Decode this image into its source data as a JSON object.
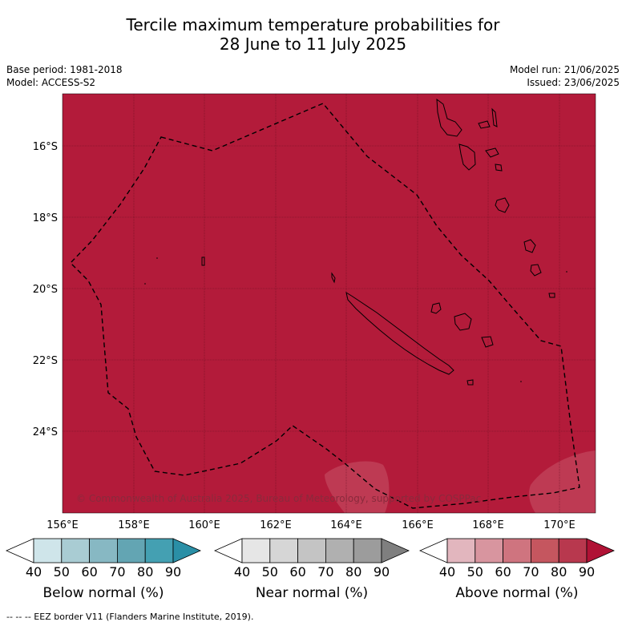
{
  "title_line1": "Tercile maximum temperature probabilities for",
  "title_line2": "28 June to 11 July 2025",
  "base_period": "Base period: 1981-2018",
  "model": "Model: ACCESS-S2",
  "model_run": "Model run: 21/06/2025",
  "issued": "Issued: 23/06/2025",
  "lat_labels": [
    "16°S",
    "18°S",
    "20°S",
    "22°S",
    "24°S"
  ],
  "lon_labels": [
    "156°E",
    "158°E",
    "160°E",
    "162°E",
    "164°E",
    "166°E",
    "168°E",
    "170°E"
  ],
  "copyright": "© Commonwealth of Australia 2025, Bureau of Meteorology, supported by COSPPac",
  "colors": {
    "map_fill": "#b31b3a",
    "above_80_90": "#b31b3a"
  },
  "colorbars": [
    {
      "title": "Below normal (%)",
      "ticks": [
        "40",
        "50",
        "60",
        "70",
        "80",
        "90"
      ],
      "colors": [
        "#ffffff",
        "#cfe5ea",
        "#a9ccd3",
        "#87b8c3",
        "#63a5b3",
        "#44a0b2",
        "#2a8fa6"
      ]
    },
    {
      "title": "Near normal (%)",
      "ticks": [
        "40",
        "50",
        "60",
        "70",
        "80",
        "90"
      ],
      "colors": [
        "#ffffff",
        "#e6e6e6",
        "#d6d6d6",
        "#c4c4c4",
        "#b0b0b0",
        "#9c9c9c",
        "#7f7f7f"
      ]
    },
    {
      "title": "Above normal (%)",
      "ticks": [
        "40",
        "50",
        "60",
        "70",
        "80",
        "90"
      ],
      "colors": [
        "#ffffff",
        "#e2b6be",
        "#d8959f",
        "#cf747f",
        "#c5565f",
        "#b8384e",
        "#b01235"
      ]
    }
  ],
  "footer": "-- -- -- EEZ border V11 (Flanders Marine Institute, 2019)."
}
